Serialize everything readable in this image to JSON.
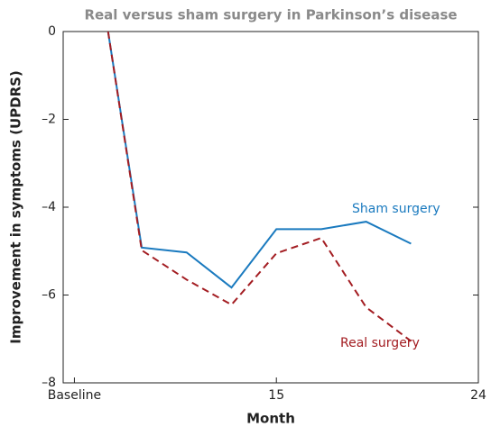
{
  "chart_data": {
    "type": "line",
    "title": "Real versus sham surgery in Parkinson’s disease",
    "xlabel": "Month",
    "ylabel": "Improvement in symptoms (UPDRS)",
    "x": [
      7.5,
      9,
      11,
      13,
      15,
      17,
      19,
      21
    ],
    "series": [
      {
        "name": "Sham surgery",
        "color": "#1a7abf",
        "dash": false,
        "values": [
          0,
          -4.92,
          -5.03,
          -5.83,
          -4.5,
          -4.5,
          -4.33,
          -4.83
        ]
      },
      {
        "name": "Real surgery",
        "color": "#a31d22",
        "dash": true,
        "values": [
          0,
          -4.98,
          -5.65,
          -6.22,
          -5.05,
          -4.7,
          -6.28,
          -7.05
        ]
      }
    ],
    "xlim": [
      5.5,
      24
    ],
    "xticks": [
      {
        "value": 6,
        "label": "Baseline"
      },
      15,
      24
    ],
    "ylim": [
      -8,
      0
    ],
    "yticks": [
      0,
      {
        "value": -2,
        "label": "–2"
      },
      {
        "value": -4,
        "label": "–4"
      },
      {
        "value": -6,
        "label": "–6"
      },
      {
        "value": -8,
        "label": "–8"
      }
    ]
  }
}
